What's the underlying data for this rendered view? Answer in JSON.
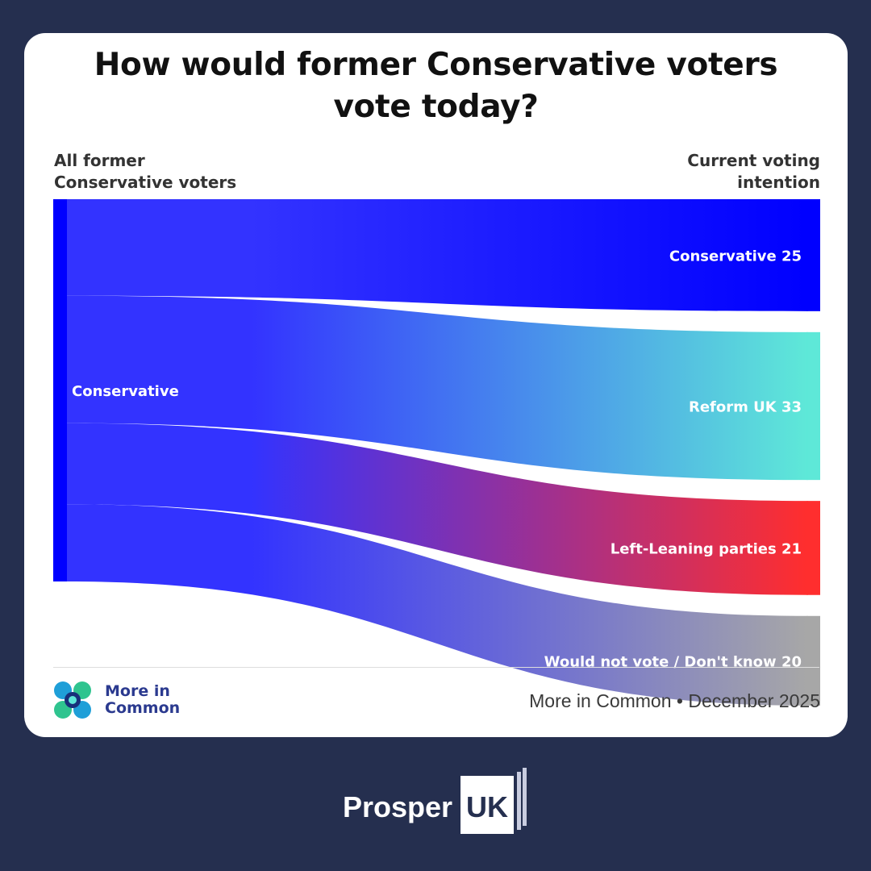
{
  "card": {
    "title_lines": [
      "How would former Conservative voters",
      "vote today?"
    ],
    "left_header_lines": [
      "All former",
      "Conservative voters"
    ],
    "right_header_lines": [
      "Current voting",
      "intention"
    ],
    "source": "More in Common • December 2025",
    "logo_lines": [
      "More in",
      "Common"
    ]
  },
  "brand": {
    "word": "Prosper",
    "box_text": "UK"
  },
  "colors": {
    "background": "#252f4f",
    "conservative": "#0000ff",
    "conservative_flow": "#3333ff",
    "reform": "#5ee8d8",
    "left": "#ff2e2e",
    "dont_know": "#a7a7a7"
  },
  "chart_data": {
    "type": "sankey",
    "title": "How would former Conservative voters vote today?",
    "source_node": {
      "label": "Conservative",
      "header": "All former Conservative voters",
      "color": "#0000ff"
    },
    "target_header": "Current voting intention",
    "flows": [
      {
        "label": "Conservative 25",
        "target": "Conservative",
        "value": 25,
        "color": "#0000ff"
      },
      {
        "label": "Reform UK 33",
        "target": "Reform UK",
        "value": 33,
        "color": "#5ee8d8"
      },
      {
        "label": "Left-Leaning parties 21",
        "target": "Left-Leaning parties",
        "value": 21,
        "color": "#ff2e2e"
      },
      {
        "label": "Would not vote / Don't know 20",
        "target": "Would not vote / Don't know",
        "value": 20,
        "color": "#a7a7a7"
      }
    ]
  }
}
